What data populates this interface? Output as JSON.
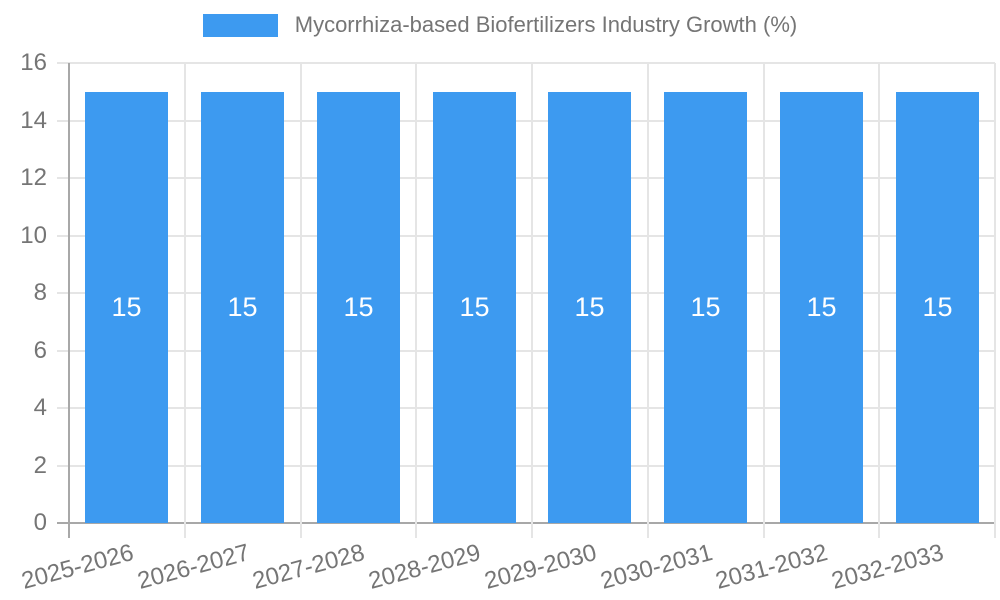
{
  "chart_data": {
    "type": "bar",
    "title": "Mycorrhiza-based Biofertilizers Industry Growth (%)",
    "legend": {
      "position": "top",
      "label": "Mycorrhiza-based Biofertilizers Industry Growth (%)"
    },
    "categories": [
      "2025-2026",
      "2026-2027",
      "2027-2028",
      "2028-2029",
      "2029-2030",
      "2030-2031",
      "2031-2032",
      "2032-2033"
    ],
    "series": [
      {
        "name": "Mycorrhiza-based Biofertilizers Industry Growth (%)",
        "values": [
          15,
          15,
          15,
          15,
          15,
          15,
          15,
          15
        ]
      }
    ],
    "bar_value_labels": [
      "15",
      "15",
      "15",
      "15",
      "15",
      "15",
      "15",
      "15"
    ],
    "yticks": [
      "0",
      "2",
      "4",
      "6",
      "8",
      "10",
      "12",
      "14",
      "16"
    ],
    "ylim": [
      0,
      16
    ],
    "ytick_step": 2,
    "xlabel": "",
    "ylabel": "",
    "grid": true,
    "x_label_rotation_deg": -15,
    "colors": {
      "bar": "#3D9AF0",
      "bar_label": "#FFFFFF",
      "grid_line": "#E5E5E5",
      "axis_line": "#A8A8A8",
      "tick_label": "#757575",
      "legend_text": "#757575",
      "background": "#FFFFFF"
    }
  }
}
